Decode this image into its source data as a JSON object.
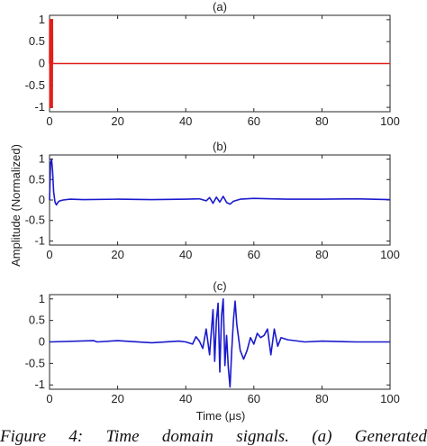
{
  "caption": "Figure 4: Time domain signals. (a) Generated",
  "xlabel": "Time (μs)",
  "ylabel": "Amplitude (Normalized)",
  "chart_data": [
    {
      "type": "line",
      "title": "(a)",
      "xlim": [
        0,
        100
      ],
      "ylim": [
        -1.1,
        1.1
      ],
      "xticks": [
        0,
        20,
        40,
        60,
        80,
        100
      ],
      "yticks": [
        1,
        0.5,
        0,
        -0.5,
        -1
      ],
      "yticklabels": [
        "1",
        "0.5",
        "0",
        "-0.5",
        "-1"
      ],
      "color": "#e0201a",
      "series": [
        {
          "x": [
            0,
            0.05,
            0.1,
            0.15,
            0.2,
            0.25,
            0.3,
            0.35,
            0.4,
            0.45,
            0.5,
            0.55,
            0.6,
            0.65,
            0.7,
            0.75,
            0.8,
            0.85,
            0.9,
            1.0,
            5,
            100
          ],
          "y": [
            0,
            1,
            -1,
            1,
            -1,
            1,
            -1,
            1,
            -1,
            1,
            -1,
            1,
            -1,
            1,
            -1,
            1,
            -1,
            1,
            0,
            0,
            0,
            0
          ]
        }
      ]
    },
    {
      "type": "line",
      "title": "(b)",
      "xlim": [
        0,
        100
      ],
      "ylim": [
        -1.1,
        1.1
      ],
      "xticks": [
        0,
        20,
        40,
        60,
        80,
        100
      ],
      "yticks": [
        1,
        0.5,
        0,
        -0.5,
        -1
      ],
      "yticklabels": [
        "1",
        "0.5",
        "0",
        "-0.5",
        "-1"
      ],
      "color": "#1a1acd",
      "series": [
        {
          "x": [
            0,
            0.3,
            0.6,
            0.9,
            1.2,
            1.6,
            2.0,
            2.5,
            3.0,
            4,
            6,
            10,
            20,
            30,
            40,
            44,
            46,
            47,
            48,
            49,
            50,
            51,
            52,
            53,
            54,
            56,
            60,
            65,
            70,
            80,
            90,
            100
          ],
          "y": [
            0,
            0.9,
            1.0,
            0.7,
            0.2,
            -0.05,
            -0.12,
            -0.05,
            -0.02,
            0.0,
            0.02,
            0.01,
            0.02,
            0.01,
            0.02,
            0.03,
            -0.02,
            0.06,
            -0.08,
            0.07,
            -0.05,
            0.09,
            -0.06,
            -0.1,
            -0.03,
            0.02,
            0.04,
            0.03,
            0.02,
            0.02,
            0.03,
            0.01
          ]
        }
      ]
    },
    {
      "type": "line",
      "title": "(c)",
      "xlim": [
        0,
        100
      ],
      "ylim": [
        -1.1,
        1.1
      ],
      "xticks": [
        0,
        20,
        40,
        60,
        80,
        100
      ],
      "yticks": [
        1,
        0.5,
        0,
        -0.5,
        -1
      ],
      "yticklabels": [
        "1",
        "0.5",
        "0",
        "-0.5",
        "-1"
      ],
      "color": "#1a1acd",
      "series": [
        {
          "x": [
            0,
            13,
            14,
            20,
            30,
            38,
            40,
            42,
            43,
            44,
            45,
            46,
            47,
            48,
            48.5,
            49,
            49.5,
            50,
            50.5,
            51,
            51.5,
            52,
            52.5,
            53,
            53.5,
            54,
            54.5,
            55,
            56,
            57,
            58,
            59,
            60,
            61,
            62,
            63,
            64,
            65,
            66,
            67,
            68,
            70,
            75,
            80,
            90,
            100
          ],
          "y": [
            0,
            0.03,
            0.0,
            0.03,
            -0.02,
            0.02,
            0.0,
            -0.05,
            0.12,
            0.02,
            -0.15,
            0.3,
            -0.3,
            0.75,
            -0.45,
            0.5,
            0.9,
            -0.7,
            0.6,
            1.0,
            -0.55,
            0.15,
            -0.6,
            -1.05,
            -0.2,
            0.5,
            0.95,
            0.4,
            -0.2,
            -0.4,
            -0.2,
            0.1,
            -0.05,
            0.2,
            0.1,
            0.15,
            0.3,
            -0.3,
            0.3,
            -0.1,
            0.1,
            0.05,
            0.0,
            0.02,
            0.0,
            0.0
          ]
        }
      ]
    }
  ]
}
